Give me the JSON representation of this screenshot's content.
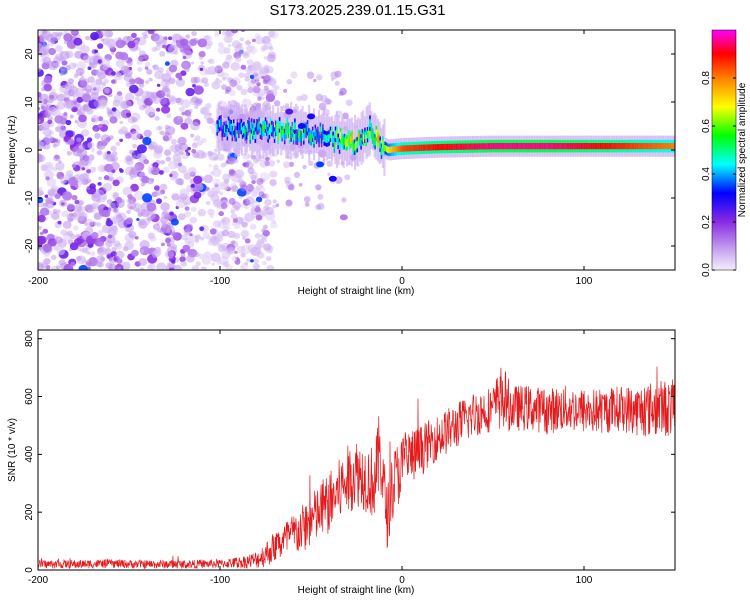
{
  "figure": {
    "title": "S173.2025.239.01.15.G31"
  },
  "chart_data": [
    {
      "type": "heatmap",
      "title": "S173.2025.239.01.15.G31",
      "xlabel": "Height of straight line (km)",
      "ylabel": "Frequency (Hz)",
      "xlim": [
        -200,
        150
      ],
      "ylim": [
        -25,
        25
      ],
      "xticks": [
        -200,
        -100,
        0,
        100
      ],
      "xtick_labels": [
        "-200",
        "-100",
        "0",
        "100"
      ],
      "yticks": [
        -20,
        -10,
        0,
        10,
        20
      ],
      "ytick_labels": [
        "-20",
        "-10",
        "0",
        "10",
        "20"
      ],
      "colorbar": {
        "label": "Normalized spectral amplitude",
        "range": [
          0,
          1
        ],
        "ticks": [
          0.0,
          0.2,
          0.4,
          0.6,
          0.8
        ],
        "tick_labels": [
          "0.0",
          "0.2",
          "0.4",
          "0.6",
          "0.8"
        ],
        "colors": [
          "#e6d6f5",
          "#8a2be2",
          "#0000ff",
          "#00ffff",
          "#00ff00",
          "#ffff00",
          "#ff7f00",
          "#ff0000",
          "#ff00ff"
        ]
      },
      "ridge": {
        "x": [
          -100,
          -80,
          -60,
          -45,
          -35,
          -25,
          -18,
          -12,
          -8,
          0,
          20,
          50,
          80,
          110,
          150
        ],
        "frequency": [
          4.5,
          4,
          4,
          3,
          2,
          1.5,
          4.5,
          1,
          0,
          0.3,
          0.6,
          0.8,
          0.8,
          0.8,
          0.8
        ],
        "amplitude": [
          0.25,
          0.3,
          0.35,
          0.3,
          0.4,
          0.45,
          0.35,
          0.5,
          0.7,
          0.85,
          0.9,
          0.95,
          0.95,
          0.9,
          0.8
        ]
      }
    },
    {
      "type": "line",
      "xlabel": "Height of straight line (km)",
      "ylabel": "SNR (10 * v/v)",
      "xlim": [
        -200,
        150
      ],
      "ylim": [
        0,
        830
      ],
      "xticks": [
        -200,
        -100,
        0,
        100
      ],
      "xtick_labels": [
        "-200",
        "-100",
        "0",
        "100"
      ],
      "yticks": [
        0,
        200,
        400,
        600,
        800
      ],
      "ytick_labels": [
        "0",
        "200",
        "400",
        "600",
        "800"
      ],
      "series": [
        {
          "name": "SNR",
          "color": "#e41a1c",
          "x": [
            -200,
            -180,
            -160,
            -140,
            -120,
            -100,
            -90,
            -80,
            -75,
            -70,
            -65,
            -60,
            -55,
            -50,
            -45,
            -40,
            -35,
            -30,
            -25,
            -20,
            -15,
            -12,
            -10,
            -8,
            -5,
            0,
            5,
            10,
            15,
            20,
            25,
            30,
            35,
            40,
            50,
            55,
            60,
            70,
            80,
            90,
            100,
            110,
            120,
            130,
            140,
            150
          ],
          "mean": [
            20,
            20,
            22,
            20,
            20,
            22,
            25,
            35,
            55,
            80,
            100,
            120,
            140,
            170,
            200,
            230,
            270,
            310,
            340,
            320,
            300,
            420,
            280,
            180,
            300,
            360,
            390,
            410,
            440,
            460,
            480,
            500,
            520,
            540,
            560,
            600,
            560,
            560,
            550,
            560,
            550,
            550,
            560,
            550,
            560,
            560
          ],
          "spread": [
            15,
            15,
            15,
            15,
            15,
            15,
            20,
            30,
            45,
            55,
            65,
            75,
            85,
            95,
            100,
            110,
            110,
            120,
            120,
            120,
            130,
            150,
            130,
            110,
            120,
            110,
            100,
            90,
            80,
            80,
            80,
            80,
            80,
            80,
            80,
            120,
            80,
            80,
            80,
            80,
            80,
            80,
            80,
            90,
            100,
            100
          ]
        }
      ]
    }
  ]
}
